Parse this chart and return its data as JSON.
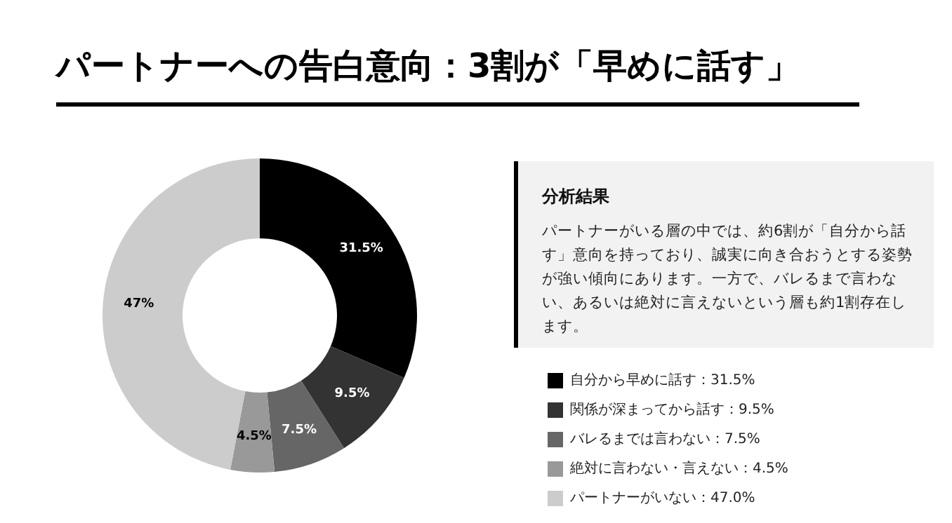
{
  "chart_data": {
    "type": "donut",
    "title": "パートナーへの告白意向：3割が「早めに話す」",
    "categories": [
      "自分から早めに話す：31.5%",
      "関係が深まってから話す：9.5%",
      "バレるまでは言わない：7.5%",
      "絶対に言わない・言えない：4.5%",
      "パートナーがいない：47.0%"
    ],
    "values": [
      31.5,
      9.5,
      7.5,
      4.5,
      47
    ],
    "value_labels": [
      "31.5%",
      "9.5%",
      "7.5%",
      "4.5%",
      "47%"
    ],
    "colors": [
      "#000000",
      "#333333",
      "#666666",
      "#999999",
      "#cccccc"
    ],
    "legend": "bottom right",
    "annotations": [
      "分析結果",
      "パートナーがいる層の中では、約6割が「自分から話す」意向を持っており、誠実に向き合おうとする姿勢が強い傾向にあります。一方で、バレるまで言わない、あるいは絶対に言えないという層も約1割存在します。"
    ]
  }
}
